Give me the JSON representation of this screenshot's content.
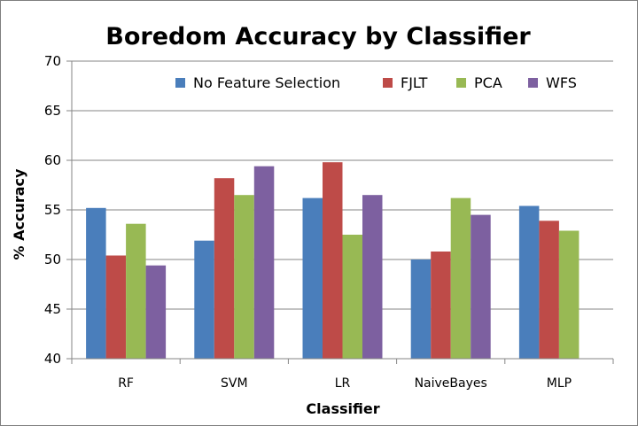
{
  "chart_data": {
    "type": "bar",
    "title": "Boredom Accuracy by Classifier",
    "xlabel": "Classifier",
    "ylabel": "% Accuracy",
    "ylim": [
      40,
      70
    ],
    "yticks": [
      "40",
      "45",
      "50",
      "55",
      "60",
      "65",
      "70"
    ],
    "categories": [
      "RF",
      "SVM",
      "LR",
      "NaiveBayes",
      "MLP"
    ],
    "grid": true,
    "legend_position": "top-right",
    "series": [
      {
        "name": "No Feature Selection",
        "color": "#4a7ebb",
        "values": [
          55.2,
          51.9,
          56.2,
          50.0,
          55.4
        ]
      },
      {
        "name": "FJLT",
        "color": "#be4b48",
        "values": [
          50.4,
          58.2,
          59.8,
          50.8,
          53.9
        ]
      },
      {
        "name": "PCA",
        "color": "#98b954",
        "values": [
          53.6,
          56.5,
          52.5,
          56.2,
          52.9
        ]
      },
      {
        "name": "WFS",
        "color": "#7d60a0",
        "values": [
          49.4,
          59.4,
          56.5,
          54.5,
          null
        ]
      }
    ]
  }
}
